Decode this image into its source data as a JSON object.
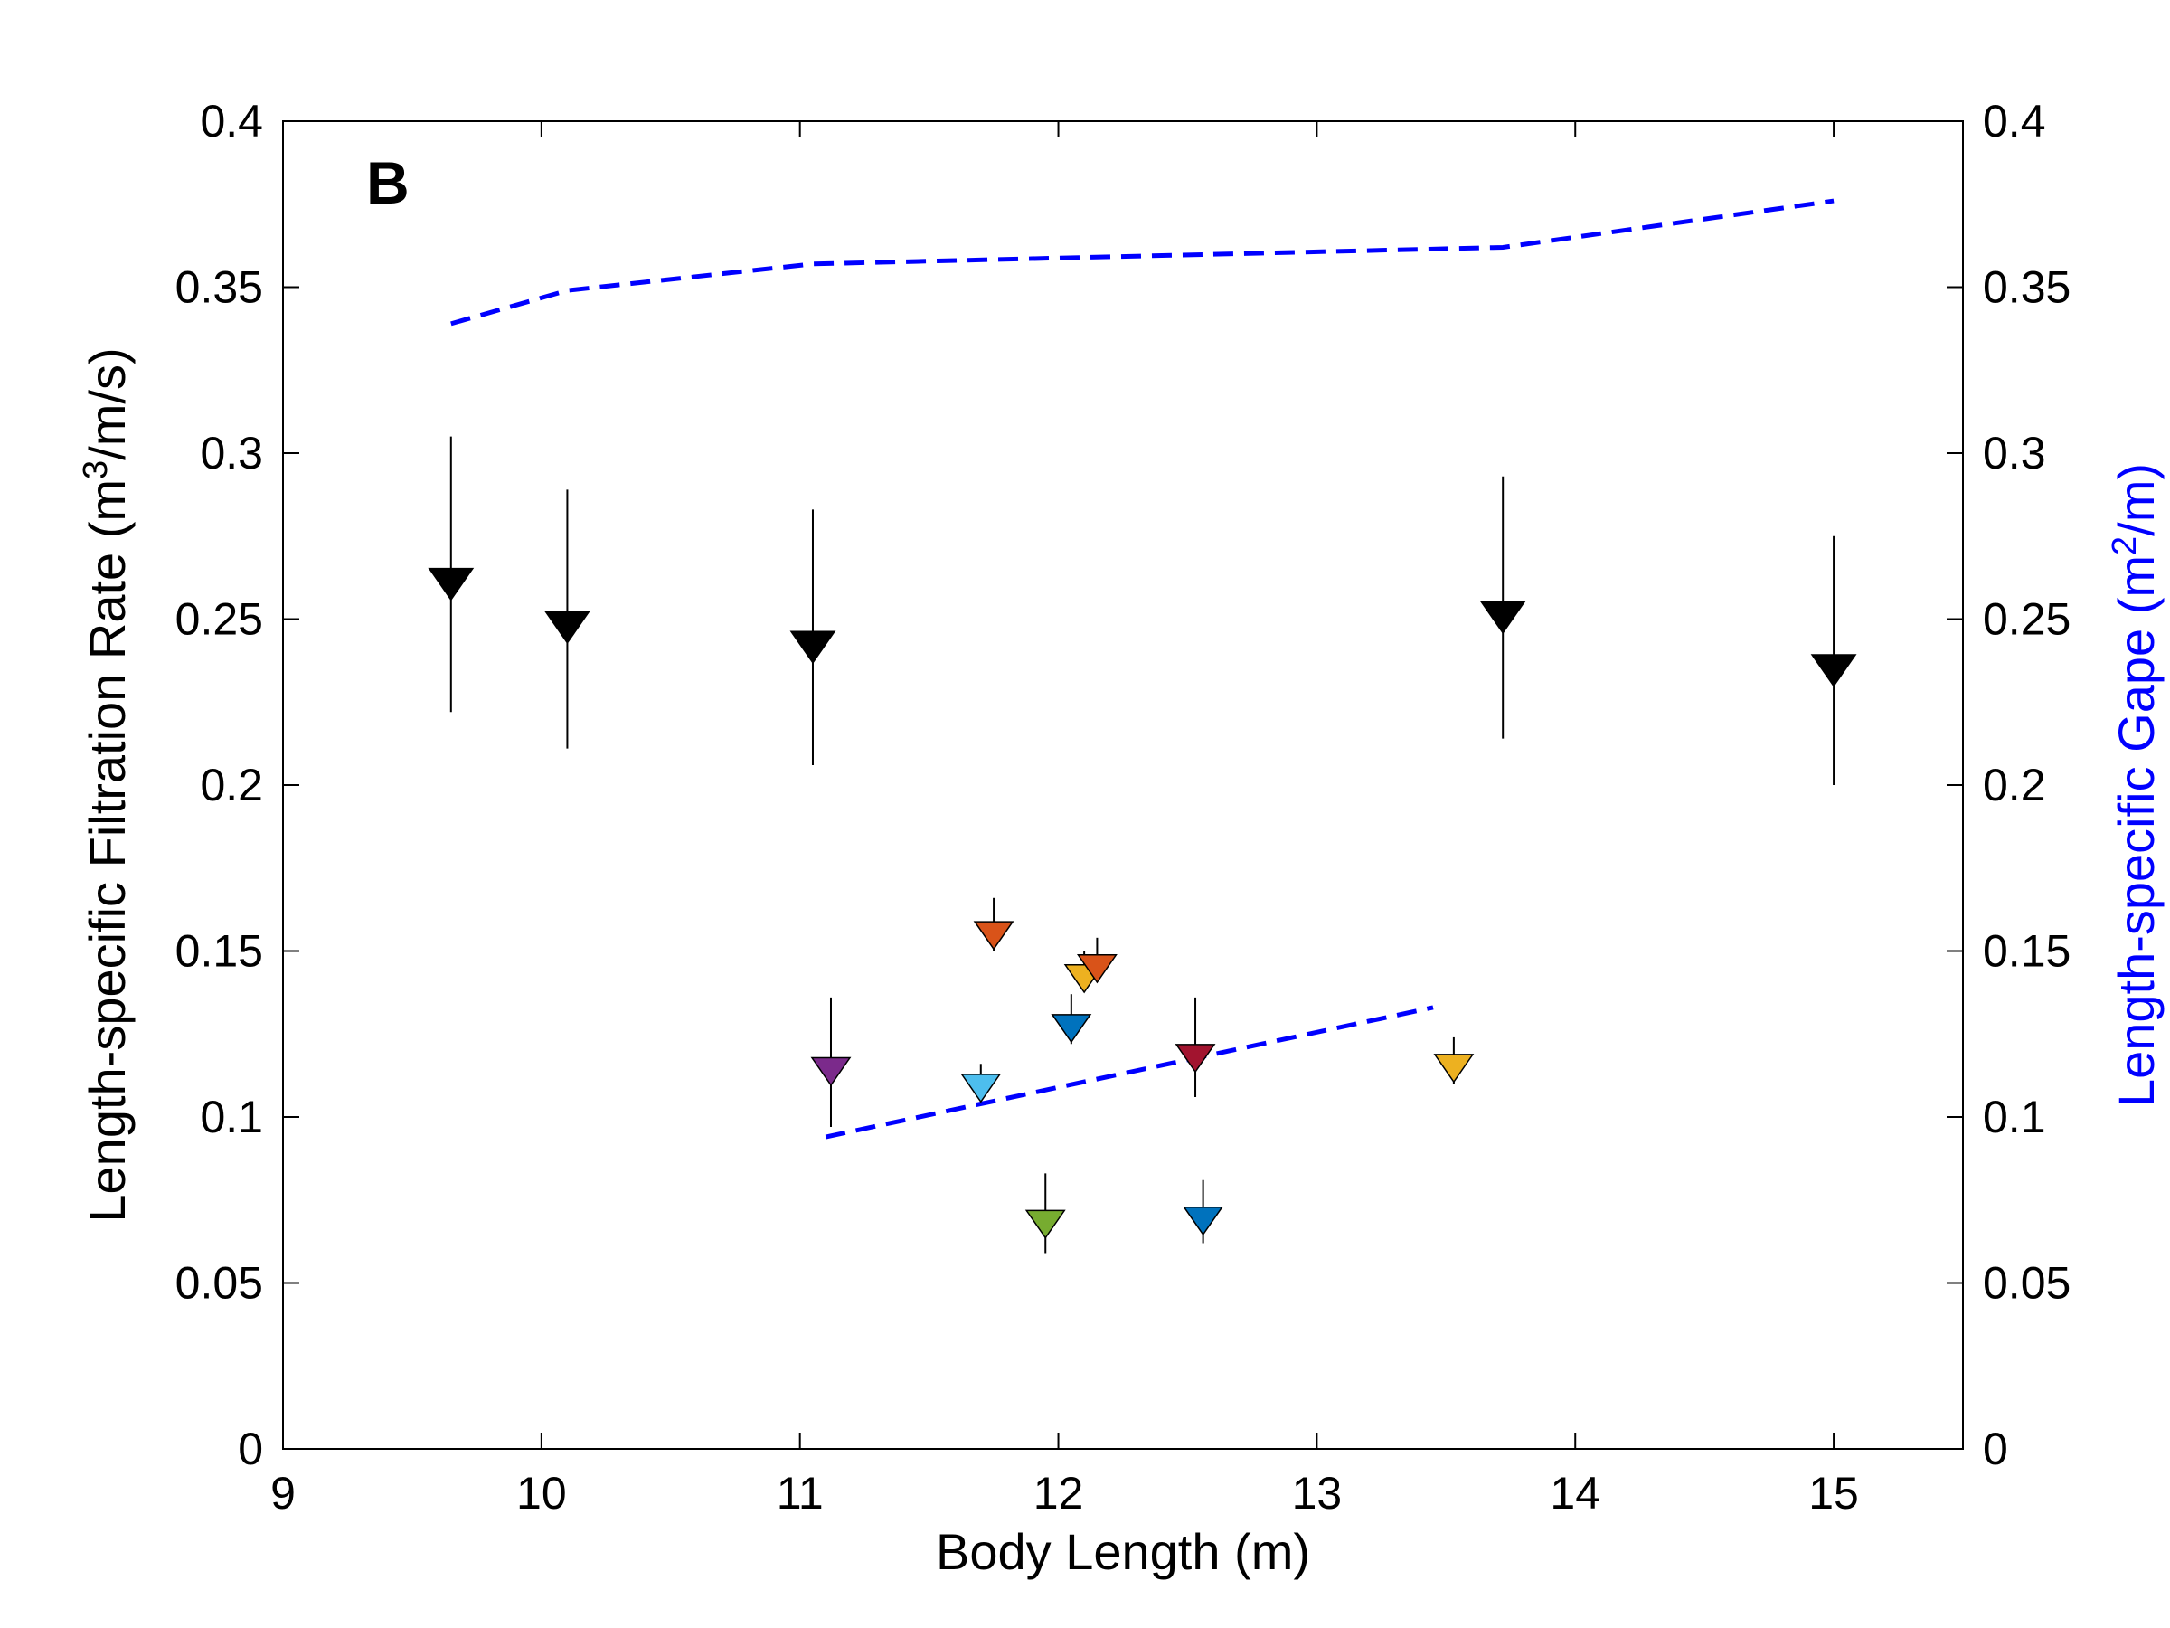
{
  "chart_data": {
    "type": "scatter",
    "panel_label": "B",
    "xlabel": "Body Length (m)",
    "ylabel_left": {
      "pre": "Length-specific Filtration Rate (m",
      "sup": "3",
      "post": "/m/s)"
    },
    "ylabel_right": {
      "pre": "Length-specific Gape (m",
      "sup": "2",
      "post": "/m)"
    },
    "xlim": [
      9,
      15.5
    ],
    "ylim": [
      0,
      0.4
    ],
    "xticks": [
      9,
      10,
      11,
      12,
      13,
      14,
      15
    ],
    "xtick_labels": [
      "9",
      "10",
      "11",
      "12",
      "13",
      "14",
      "15"
    ],
    "yticks": [
      0,
      0.05,
      0.1,
      0.15,
      0.2,
      0.25,
      0.3,
      0.35,
      0.4
    ],
    "ytick_labels_left": [
      "0",
      "0.05",
      "0.1",
      "0.15",
      "0.2",
      "0.25",
      "0.3",
      "0.35",
      "0.4"
    ],
    "ytick_labels_right": [
      "0",
      "0.05",
      "0.1",
      "0.15",
      "0.2",
      "0.25",
      "0.3",
      "0.35",
      "0.4"
    ],
    "right_axis_color": "#0000ff",
    "grid": false,
    "legend": "none",
    "model_points": [
      {
        "x": 9.65,
        "y": 0.262,
        "upper": 0.305,
        "lower": 0.222,
        "color": "#000000"
      },
      {
        "x": 10.1,
        "y": 0.249,
        "upper": 0.289,
        "lower": 0.211,
        "color": "#000000"
      },
      {
        "x": 11.05,
        "y": 0.243,
        "upper": 0.283,
        "lower": 0.206,
        "color": "#000000"
      },
      {
        "x": 13.72,
        "y": 0.252,
        "upper": 0.293,
        "lower": 0.214,
        "color": "#000000"
      },
      {
        "x": 15.0,
        "y": 0.236,
        "upper": 0.275,
        "lower": 0.2,
        "color": "#000000"
      }
    ],
    "observed_points": [
      {
        "x": 11.12,
        "y": 0.115,
        "upper": 0.136,
        "lower": 0.097,
        "color": "#7b2a8b"
      },
      {
        "x": 11.75,
        "y": 0.156,
        "upper": 0.166,
        "lower": 0.15,
        "color": "#d95319"
      },
      {
        "x": 12.1,
        "y": 0.143,
        "upper": 0.15,
        "lower": 0.14,
        "color": "#edb120"
      },
      {
        "x": 12.15,
        "y": 0.146,
        "upper": 0.154,
        "lower": 0.141,
        "color": "#d95319"
      },
      {
        "x": 12.05,
        "y": 0.128,
        "upper": 0.137,
        "lower": 0.122,
        "color": "#0072bd"
      },
      {
        "x": 11.7,
        "y": 0.11,
        "upper": 0.116,
        "lower": 0.106,
        "color": "#4dbeee"
      },
      {
        "x": 12.53,
        "y": 0.119,
        "upper": 0.136,
        "lower": 0.106,
        "color": "#a2142f"
      },
      {
        "x": 13.53,
        "y": 0.116,
        "upper": 0.124,
        "lower": 0.11,
        "color": "#edb120"
      },
      {
        "x": 11.95,
        "y": 0.069,
        "upper": 0.083,
        "lower": 0.059,
        "color": "#77ac30"
      },
      {
        "x": 12.56,
        "y": 0.07,
        "upper": 0.081,
        "lower": 0.062,
        "color": "#0072bd"
      }
    ],
    "gape_series": [
      {
        "x": [
          9.65,
          10.1,
          11.05,
          13.72,
          15.0
        ],
        "y": [
          0.339,
          0.349,
          0.357,
          0.362,
          0.376
        ],
        "color": "#0000ff",
        "style": "dashed"
      },
      {
        "x": [
          11.1,
          13.45
        ],
        "y": [
          0.094,
          0.133
        ],
        "color": "#0000ff",
        "style": "dashed"
      }
    ]
  }
}
